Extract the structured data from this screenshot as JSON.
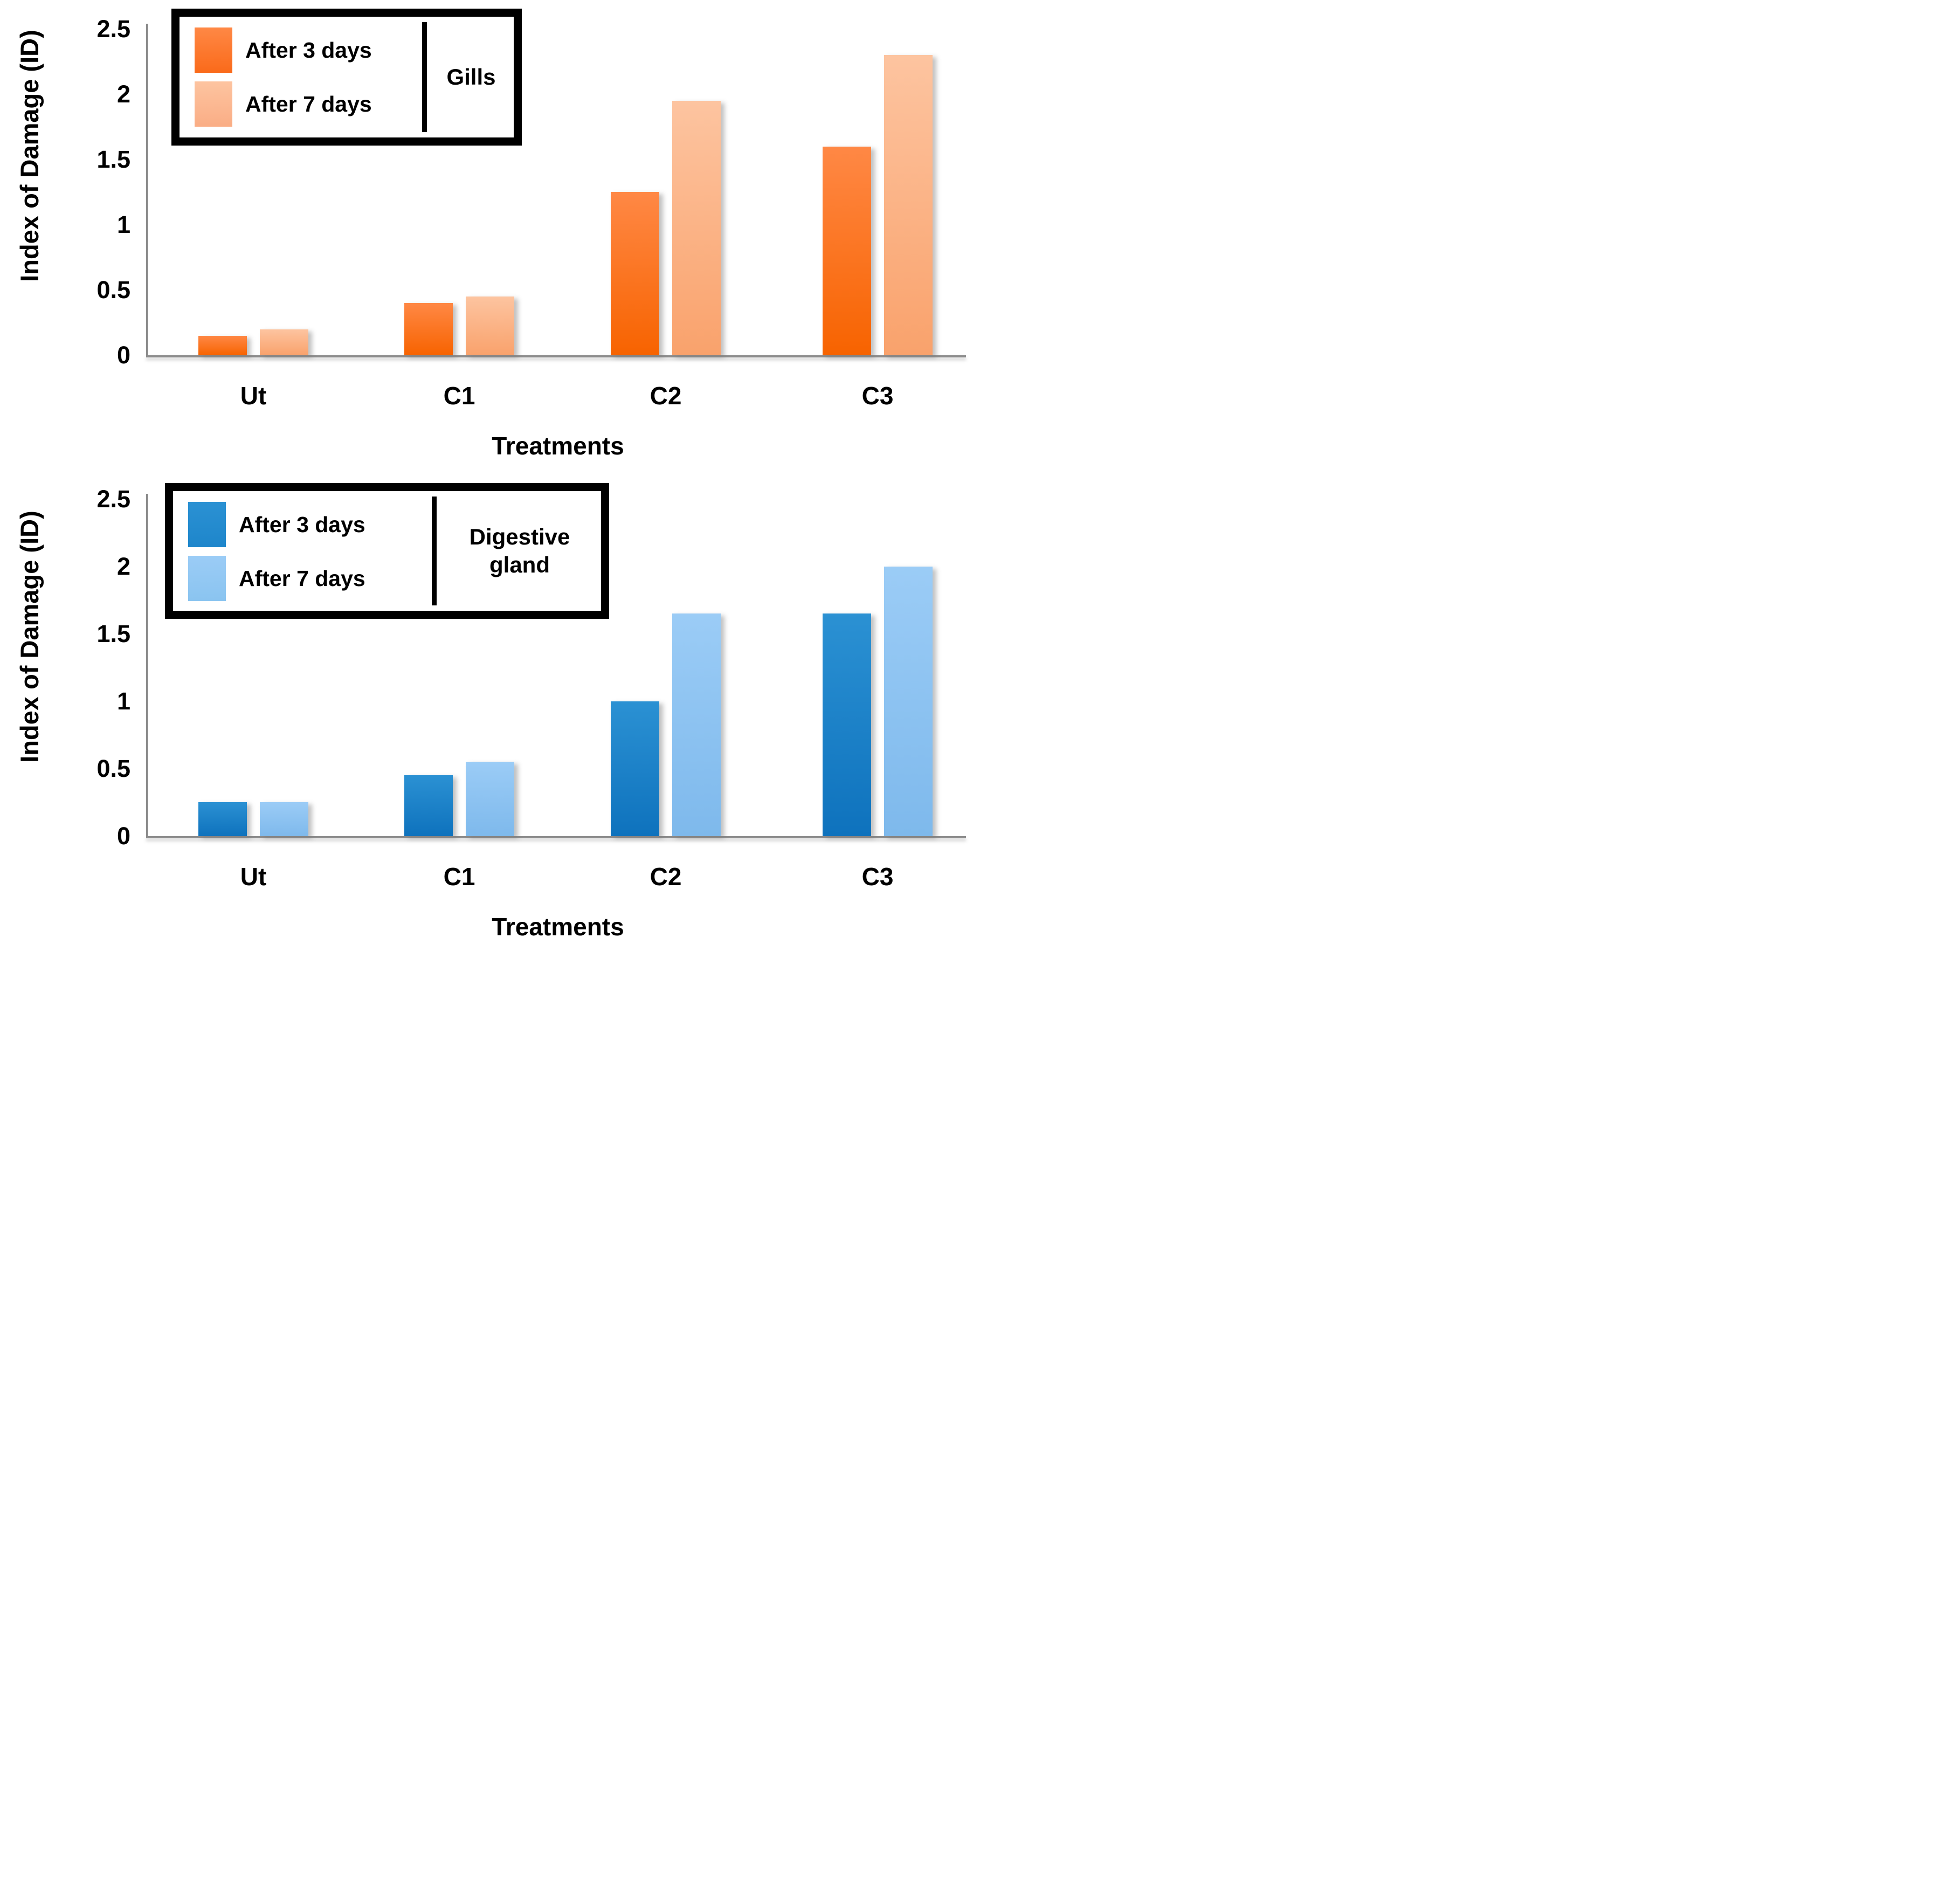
{
  "figure": {
    "y_axis_label": "Index of Damage (ID)",
    "x_axis_label": "Treatments"
  },
  "chart_data": [
    {
      "type": "bar",
      "organ": "Gills",
      "categories": [
        "Ut",
        "C1",
        "C2",
        "C3"
      ],
      "series": [
        {
          "name": "After 3 days",
          "values": [
            0.15,
            0.4,
            1.25,
            1.6
          ]
        },
        {
          "name": "After 7 days",
          "values": [
            0.2,
            0.45,
            1.95,
            2.3
          ]
        }
      ],
      "xlabel": "Treatments",
      "ylabel": "Index of Damage (ID)",
      "ylim": [
        0,
        2.5
      ],
      "yticks": [
        "0",
        "0.5",
        "1",
        "1.5",
        "2",
        "2.5"
      ],
      "legend_position": "top-left",
      "grid": false
    },
    {
      "type": "bar",
      "organ": "Digestive gland",
      "categories": [
        "Ut",
        "C1",
        "C2",
        "C3"
      ],
      "series": [
        {
          "name": "After 3 days",
          "values": [
            0.25,
            0.45,
            1.0,
            1.65
          ]
        },
        {
          "name": "After 7 days",
          "values": [
            0.25,
            0.55,
            1.65,
            2.0
          ]
        }
      ],
      "xlabel": "Treatments",
      "ylabel": "Index of Damage (ID)",
      "ylim": [
        0,
        2.5
      ],
      "yticks": [
        "0",
        "0.5",
        "1",
        "1.5",
        "2",
        "2.5"
      ],
      "legend_position": "top-left",
      "grid": false
    }
  ],
  "colors": {
    "axis_line": "#8C8C8C",
    "text": "#000000",
    "legend_border": "#000000",
    "charts": [
      {
        "organ": "Gills",
        "series": [
          {
            "swatch": "#FA6A1A",
            "gradient_top": "#FF8845",
            "gradient_bottom": "#F76300"
          },
          {
            "swatch": "#FAAD85",
            "gradient_top": "#FDC4A0",
            "gradient_bottom": "#F9A26C"
          }
        ]
      },
      {
        "organ": "Digestive gland",
        "series": [
          {
            "swatch": "#1E86CB",
            "gradient_top": "#2B91D3",
            "gradient_bottom": "#0E72BD"
          },
          {
            "swatch": "#8AC4F0",
            "gradient_top": "#9BCCF6",
            "gradient_bottom": "#7EB9EC"
          }
        ]
      }
    ]
  }
}
